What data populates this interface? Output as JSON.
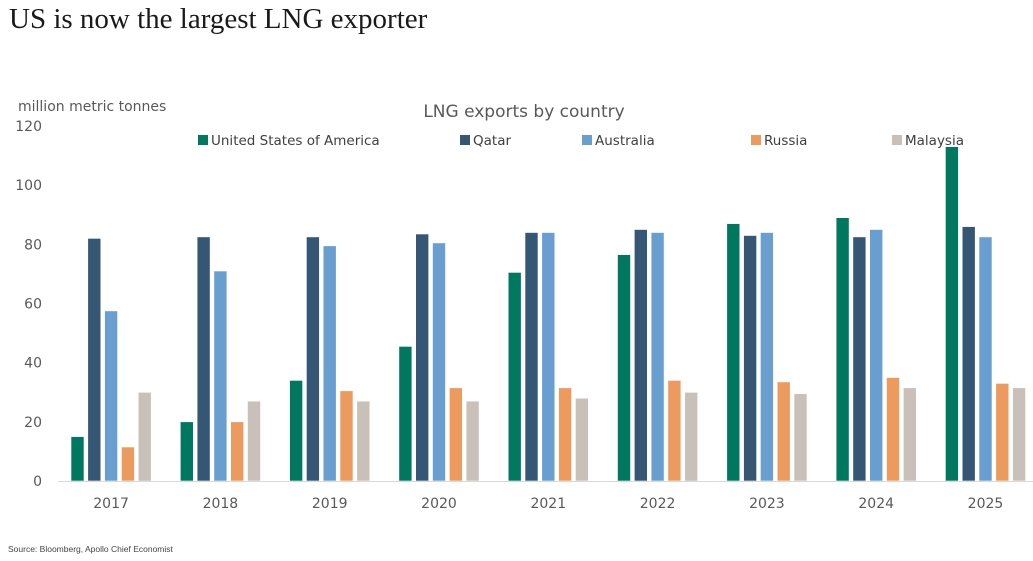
{
  "page": {
    "title": "US is now the largest LNG exporter",
    "source": "Source: Bloomberg, Apollo Chief Economist"
  },
  "chart_data": {
    "type": "bar",
    "title": "LNG exports by country",
    "xlabel": "",
    "ylabel": "million metric tonnes",
    "ylim": [
      0,
      120
    ],
    "yticks": [
      0,
      20,
      40,
      60,
      80,
      100,
      120
    ],
    "grid": false,
    "legend_position": "top",
    "categories": [
      "2017",
      "2018",
      "2019",
      "2020",
      "2021",
      "2022",
      "2023",
      "2024",
      "2025"
    ],
    "series": [
      {
        "name": "United States of America",
        "color": "#00775F",
        "values": [
          15,
          20,
          34,
          45.5,
          70.5,
          76.5,
          87,
          89,
          113
        ]
      },
      {
        "name": "Qatar",
        "color": "#355775",
        "values": [
          82,
          82.5,
          82.5,
          83.5,
          84,
          85,
          83,
          82.5,
          86
        ]
      },
      {
        "name": "Australia",
        "color": "#699ED1",
        "values": [
          57.5,
          71,
          79.5,
          80.5,
          84,
          84,
          84,
          85,
          82.5
        ]
      },
      {
        "name": "Russia",
        "color": "#ED9A5F",
        "values": [
          11.5,
          20,
          30.5,
          31.5,
          31.5,
          34,
          33.5,
          35,
          33
        ]
      },
      {
        "name": "Malaysia",
        "color": "#C9C1B9",
        "values": [
          30,
          27,
          27,
          27,
          28,
          30,
          29.5,
          31.5,
          31.5
        ]
      }
    ]
  }
}
